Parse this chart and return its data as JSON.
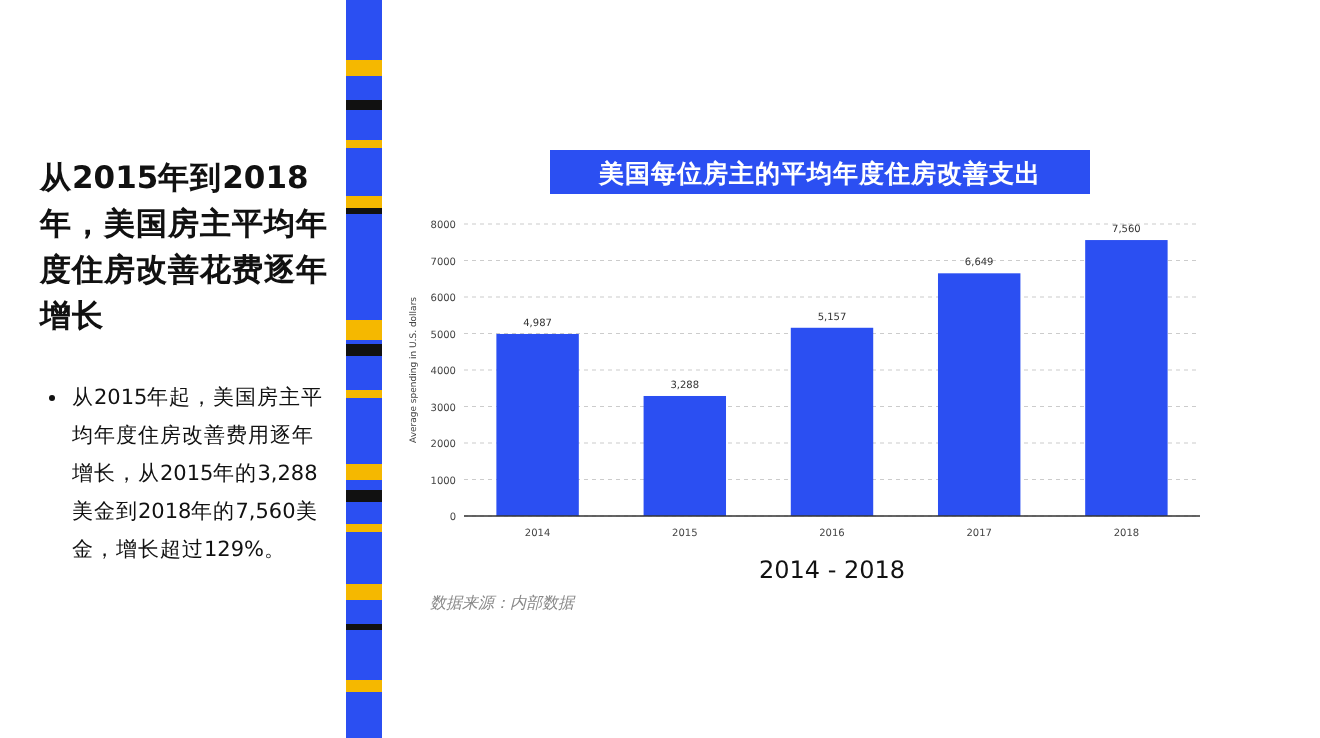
{
  "chart_data": {
    "type": "bar",
    "title": "美国每位房主的平均年度住房改善支出",
    "xlabel": "2014 - 2018",
    "ylabel": "Average spending in U.S. dollars",
    "categories": [
      "2014",
      "2015",
      "2016",
      "2017",
      "2018"
    ],
    "values": [
      4987,
      3288,
      5157,
      6649,
      7560
    ],
    "value_labels": [
      "4,987",
      "3,288",
      "5,157",
      "6,649",
      "7,560"
    ],
    "color": "#2b4ff2",
    "ylim": [
      0,
      8000
    ],
    "yticks": [
      0,
      1000,
      2000,
      3000,
      4000,
      5000,
      6000,
      7000,
      8000
    ],
    "grid": "y",
    "annotations": [
      "从2015年到2018年，美国房主平均年度住房改善花费逐年增长",
      "从2015年起，美国房主平均年度住房改善费用逐年增长，从2015年的3,288美金到2018年的7,560美金，增长超过129%。",
      "数据来源：内部数据"
    ]
  }
}
